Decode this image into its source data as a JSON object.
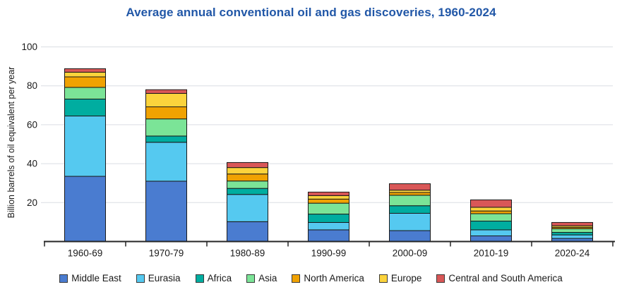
{
  "title": "Average annual conventional oil and gas discoveries, 1960-2024",
  "colors": {
    "title_text": "#2157A7",
    "axis_line": "#262626",
    "tick_text": "#1A1A1A",
    "grid_line": "#DADEE3",
    "bar_border": "#1A1A1A",
    "background": "#FFFFFF"
  },
  "chart_data": {
    "type": "bar",
    "stacked": true,
    "title": "Average annual conventional oil and gas discoveries, 1960-2024",
    "xlabel": "",
    "ylabel": "Billion barrels of oil equivalent per year",
    "ylim": [
      0,
      100
    ],
    "yticks": [
      20,
      40,
      60,
      80,
      100
    ],
    "grid": true,
    "legend_position": "bottom",
    "categories": [
      "1960-69",
      "1970-79",
      "1980-89",
      "1990-99",
      "2000-09",
      "2010-19",
      "2020-24"
    ],
    "series": [
      {
        "name": "Middle East",
        "color": "#4A7CD0",
        "values": [
          33.5,
          31.0,
          10.2,
          6.0,
          5.6,
          2.9,
          1.6
        ]
      },
      {
        "name": "Eurasia",
        "color": "#55C9F0",
        "values": [
          31.0,
          20.0,
          14.0,
          3.8,
          8.9,
          3.1,
          1.8
        ]
      },
      {
        "name": "Africa",
        "color": "#00ADA0",
        "values": [
          8.7,
          3.2,
          3.1,
          4.3,
          3.9,
          4.5,
          1.3
        ]
      },
      {
        "name": "Asia",
        "color": "#7BE497",
        "values": [
          6.0,
          8.8,
          3.8,
          5.6,
          5.4,
          3.8,
          1.9
        ]
      },
      {
        "name": "North America",
        "color": "#F0A202",
        "values": [
          5.4,
          6.2,
          3.6,
          2.1,
          1.4,
          1.4,
          0.7
        ]
      },
      {
        "name": "Europe",
        "color": "#FBD33C",
        "values": [
          2.4,
          6.9,
          3.3,
          1.8,
          1.2,
          1.9,
          0.8
        ]
      },
      {
        "name": "Central and South America",
        "color": "#D95757",
        "values": [
          1.8,
          1.9,
          2.6,
          1.8,
          3.3,
          3.8,
          1.7
        ]
      }
    ],
    "totals": [
      88.8,
      78.0,
      40.6,
      25.4,
      29.7,
      21.4,
      9.8
    ]
  }
}
